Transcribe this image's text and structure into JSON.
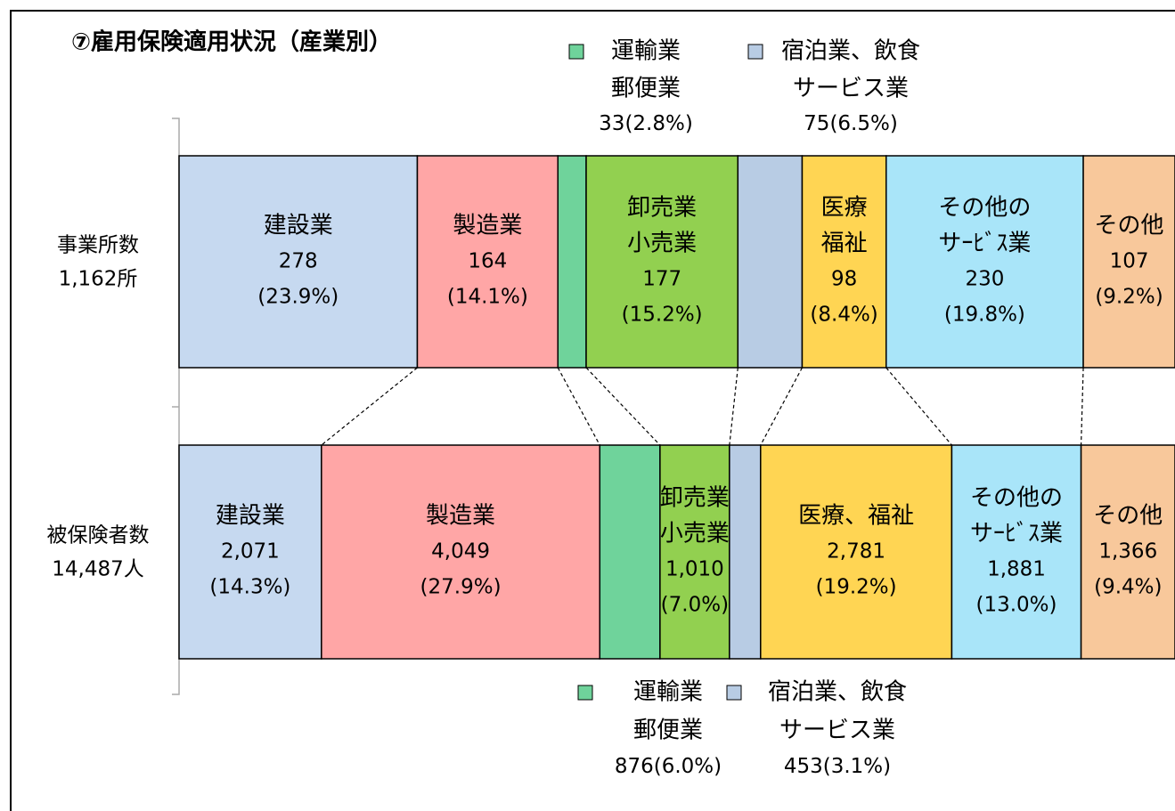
{
  "chart_data": {
    "type": "stacked-bar-100",
    "title": "⑦雇用保険適用状況（産業別）",
    "rows": [
      {
        "label": [
          "事業所数",
          "1,162所"
        ],
        "segments": [
          {
            "label": [
              "建設業"
            ],
            "value": 278,
            "pct": "(23.9%)",
            "color": "#c6d9f0"
          },
          {
            "label": [
              "製造業"
            ],
            "value": 164,
            "pct": "(14.1%)",
            "color": "#ffa6a6"
          },
          {
            "label": [
              "運輸業",
              "郵便業"
            ],
            "value": 33,
            "pct": "(2.8%)",
            "color": "#6fd39b",
            "outside": true
          },
          {
            "label": [
              "卸売業",
              "小売業"
            ],
            "value": 177,
            "pct": "(15.2%)",
            "color": "#92d050"
          },
          {
            "label": [
              "宿泊業、飲食",
              "サービス業"
            ],
            "value": 75,
            "pct": "(6.5%)",
            "color": "#b8cce4",
            "outside": true
          },
          {
            "label": [
              "医療",
              "福祉"
            ],
            "value": 98,
            "pct": "(8.4%)",
            "color": "#ffd553"
          },
          {
            "label": [
              "その他の",
              "サｰﾋﾞｽ業"
            ],
            "value": 230,
            "pct": "(19.8%)",
            "color": "#a9e5f9"
          },
          {
            "label": [
              "その他"
            ],
            "value": 107,
            "pct": "(9.2%)",
            "color": "#f8c89b"
          }
        ]
      },
      {
        "label": [
          "被保険者数",
          "14,487人"
        ],
        "segments": [
          {
            "label": [
              "建設業"
            ],
            "value": 2071,
            "value_label": "2,071",
            "pct": "(14.3%)",
            "color": "#c6d9f0"
          },
          {
            "label": [
              "製造業"
            ],
            "value": 4049,
            "value_label": "4,049",
            "pct": "(27.9%)",
            "color": "#ffa6a6"
          },
          {
            "label": [
              "運輸業",
              "郵便業"
            ],
            "value": 876,
            "pct": "(6.0%)",
            "color": "#6fd39b",
            "outside": true
          },
          {
            "label": [
              "卸売業",
              "小売業"
            ],
            "value": 1010,
            "value_label": "1,010",
            "pct": "(7.0%)",
            "color": "#92d050"
          },
          {
            "label": [
              "宿泊業、飲食",
              "サービス業"
            ],
            "value": 453,
            "pct": "(3.1%)",
            "color": "#b8cce4",
            "outside": true
          },
          {
            "label": [
              "医療、福祉"
            ],
            "value": 2781,
            "value_label": "2,781",
            "pct": "(19.2%)",
            "color": "#ffd553"
          },
          {
            "label": [
              "その他の",
              "サｰﾋﾞｽ業"
            ],
            "value": 1881,
            "value_label": "1,881",
            "pct": "(13.0%)",
            "color": "#a9e5f9"
          },
          {
            "label": [
              "その他"
            ],
            "value": 1366,
            "value_label": "1,366",
            "pct": "(9.4%)",
            "color": "#f8c89b"
          }
        ]
      }
    ]
  }
}
